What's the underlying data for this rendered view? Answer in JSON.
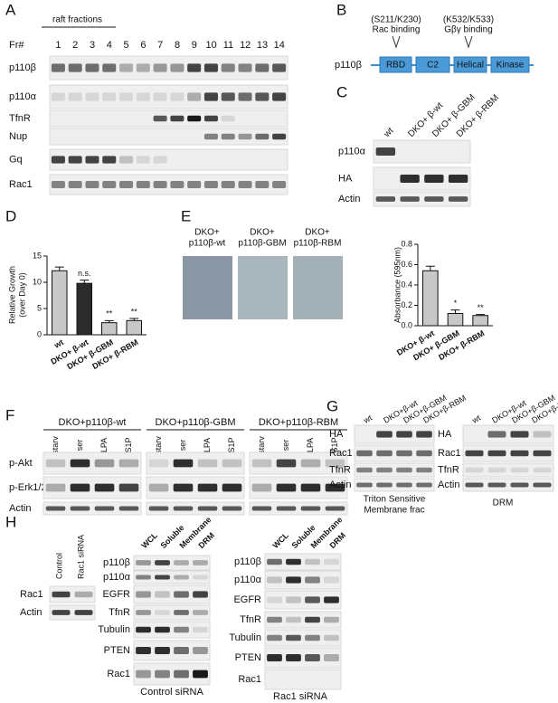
{
  "panels": {
    "A": {
      "label": "A",
      "header": "raft fractions",
      "fr_label": "Fr#",
      "fractions": [
        "1",
        "2",
        "3",
        "4",
        "5",
        "6",
        "7",
        "8",
        "9",
        "10",
        "11",
        "12",
        "13",
        "14"
      ],
      "rows": [
        "p110β",
        "p110α",
        "TfnR",
        "Nup",
        "Gq",
        "Rac1"
      ]
    },
    "B": {
      "label": "B",
      "protein": "p110β",
      "annot_left": [
        "(S211/K230)",
        "Rac binding"
      ],
      "annot_right": [
        "(K532/K533)",
        "Gβγ binding"
      ],
      "domains": [
        "RBD",
        "C2",
        "Helical",
        "Kinase"
      ]
    },
    "C": {
      "label": "C",
      "lanes": [
        "wt",
        "DKO+ β-wt",
        "DKO+ β-GBM",
        "DKO+ β-RBM"
      ],
      "rows": [
        "p110α",
        "HA",
        "Actin"
      ]
    },
    "D": {
      "label": "D"
    },
    "E": {
      "label": "E",
      "images": [
        [
          "DKO+",
          "p110β-wt"
        ],
        [
          "DKO+",
          "p110β-GBM"
        ],
        [
          "DKO+",
          "p110β-RBM"
        ]
      ]
    },
    "F": {
      "label": "F",
      "groups": [
        "DKO+p110β-wt",
        "DKO+p110β-GBM",
        "DKO+p110β-RBM"
      ],
      "lanes": [
        "starv",
        "ser",
        "LPA",
        "S1P"
      ],
      "rows": [
        "p-Akt",
        "p-Erk1/2",
        "Actin"
      ]
    },
    "G": {
      "label": "G",
      "lanes": [
        "wt",
        "DKO+β-wt",
        "DKO+β-GBM",
        "DKO+β-RBM"
      ],
      "rows_left": [
        "HA",
        "Rac1",
        "TfnR",
        "Actin"
      ],
      "rows_right": [
        "HA",
        "Rac1",
        "TfnR",
        "Actin"
      ],
      "caption_left": [
        "Triton Sensitive",
        "Membrane frac"
      ],
      "caption_right": "DRM"
    },
    "H": {
      "label": "H",
      "small_lanes": [
        "Control",
        "Rac1 siRNA"
      ],
      "small_rows": [
        "Rac1",
        "Actin"
      ],
      "lanes": [
        "WCL",
        "Soluble",
        "Membrane",
        "DRM"
      ],
      "rows_control": [
        "p110β",
        "p110α",
        "EGFR",
        "TfnR",
        "Tubulin",
        "PTEN",
        "Rac1"
      ],
      "caption_control": "Control siRNA",
      "rows_rac1": [
        "p110β",
        "p110α",
        "EGFR",
        "TfnR",
        "Tubulin",
        "PTEN",
        "Rac1"
      ],
      "caption_rac1": "Rac1 siRNA"
    }
  },
  "chart_data": [
    {
      "type": "bar",
      "ylabel": [
        "Relative Growth",
        "(over Day 0)"
      ],
      "categories": [
        "wt",
        "DKO+ β-wt",
        "DKO+ β-GBM",
        "DKO+ β-RBM"
      ],
      "values": [
        12.2,
        9.8,
        2.3,
        2.7
      ],
      "errors": [
        0.7,
        0.6,
        0.4,
        0.4
      ],
      "colors": [
        "#c8c8c8",
        "#2b2b2b",
        "#c8c8c8",
        "#c8c8c8"
      ],
      "significance": [
        null,
        "n.s.",
        "**",
        "**"
      ],
      "ylim": [
        0,
        15
      ],
      "yticks": [
        0,
        5,
        10,
        15
      ]
    },
    {
      "type": "bar",
      "ylabel": "Absorbance (595nm)",
      "categories": [
        "DKO+ β-wt",
        "DKO+ β-GBM",
        "DKO+ β-RBM"
      ],
      "values": [
        0.54,
        0.12,
        0.1
      ],
      "errors": [
        0.045,
        0.035,
        0.01
      ],
      "colors": [
        "#c8c8c8",
        "#c8c8c8",
        "#c8c8c8"
      ],
      "significance": [
        null,
        "*",
        "**"
      ],
      "ylim": [
        0,
        0.8
      ],
      "yticks": [
        {
          "value": 0,
          "label": "0.0"
        },
        {
          "value": 0.2,
          "label": "0.2"
        },
        {
          "value": 0.4,
          "label": "0.4"
        },
        {
          "value": 0.6,
          "label": "0.6"
        },
        {
          "value": 0.8,
          "label": "0.8"
        }
      ]
    }
  ]
}
